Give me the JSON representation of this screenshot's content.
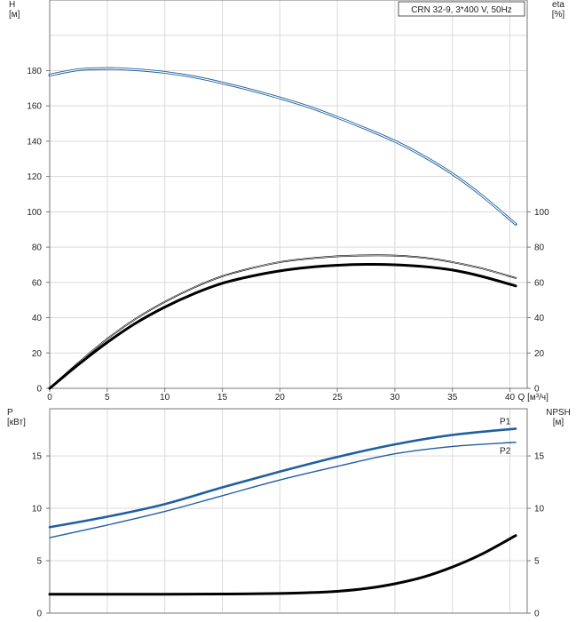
{
  "chart_data": [
    {
      "type": "line",
      "title": "CRN 32-9, 3*400 V, 50Hz",
      "xlabel": "Q [м³/ч]",
      "ylabel": "H\n[м]",
      "y2label": "eta\n[%]",
      "xlim": [
        0,
        41.5
      ],
      "ylim": [
        0,
        220
      ],
      "y2lim": [
        0,
        220
      ],
      "xticks": [
        0,
        5,
        10,
        15,
        20,
        25,
        30,
        35,
        40
      ],
      "yticks": [
        0,
        20,
        40,
        60,
        80,
        100,
        120,
        140,
        160,
        180
      ],
      "y2ticks": [
        0,
        20,
        40,
        60,
        80,
        100
      ],
      "grid": true,
      "series": [
        {
          "axis": "left",
          "color": "#1f5fa0",
          "x": [
            0,
            2.5,
            5,
            7.5,
            10,
            12.5,
            15,
            17.5,
            20,
            22.5,
            25,
            27.5,
            30,
            32.5,
            35,
            37.5,
            40.5
          ],
          "y": [
            177.5,
            180.5,
            181.2,
            180.5,
            179,
            176.5,
            173,
            169,
            164.5,
            159.5,
            153.5,
            147,
            140,
            131.5,
            121.5,
            109.5,
            93
          ]
        },
        {
          "axis": "right",
          "color": "#000000",
          "x": [
            0,
            2.5,
            5,
            7.5,
            10,
            12.5,
            15,
            17.5,
            20,
            22.5,
            25,
            27.5,
            30,
            32.5,
            35,
            37.5,
            40.5
          ],
          "y": [
            0,
            14.5,
            28,
            39.5,
            49,
            57,
            63.5,
            68,
            71.5,
            73.5,
            74.8,
            75.3,
            75.2,
            74,
            71.5,
            68,
            62.5
          ]
        },
        {
          "axis": "right",
          "color": "#000000",
          "x": [
            0,
            2.5,
            5,
            7.5,
            10,
            12.5,
            15,
            17.5,
            20,
            22.5,
            25,
            27.5,
            30,
            32.5,
            35,
            37.5,
            40.5
          ],
          "y": [
            0,
            13.5,
            26,
            37,
            46,
            53.5,
            59.5,
            63.5,
            66.5,
            68.5,
            69.7,
            70.2,
            70,
            69,
            67,
            63.5,
            58
          ]
        }
      ]
    },
    {
      "type": "line",
      "xlabel": "",
      "ylabel": "P\n[кВт]",
      "y2label": "NPSH\n[м]",
      "xlim": [
        0,
        41.5
      ],
      "ylim": [
        0,
        19.5
      ],
      "y2lim": [
        0,
        19.5
      ],
      "xticks": [
        0,
        5,
        10,
        15,
        20,
        25,
        30,
        35,
        40
      ],
      "yticks": [
        0,
        5,
        10,
        15
      ],
      "y2ticks": [
        0,
        5,
        10,
        15
      ],
      "grid": true,
      "series": [
        {
          "name": "P1",
          "axis": "left",
          "color": "#1f5fa0",
          "x": [
            0,
            5,
            10,
            15,
            20,
            25,
            30,
            35,
            40.5
          ],
          "y": [
            8.2,
            9.2,
            10.4,
            12.0,
            13.5,
            14.9,
            16.1,
            17.0,
            17.6
          ]
        },
        {
          "name": "P2",
          "axis": "left",
          "color": "#1f5fa0",
          "x": [
            0,
            5,
            10,
            15,
            20,
            25,
            30,
            35,
            40.5
          ],
          "y": [
            7.2,
            8.4,
            9.7,
            11.2,
            12.7,
            14.0,
            15.2,
            15.9,
            16.3
          ]
        },
        {
          "axis": "right",
          "color": "#000000",
          "x": [
            0,
            5,
            10,
            15,
            20,
            22.5,
            25,
            27.5,
            30,
            32.5,
            35,
            37.5,
            40.5
          ],
          "y": [
            1.8,
            1.8,
            1.8,
            1.82,
            1.88,
            1.95,
            2.08,
            2.35,
            2.8,
            3.45,
            4.4,
            5.6,
            7.4
          ]
        }
      ]
    }
  ]
}
